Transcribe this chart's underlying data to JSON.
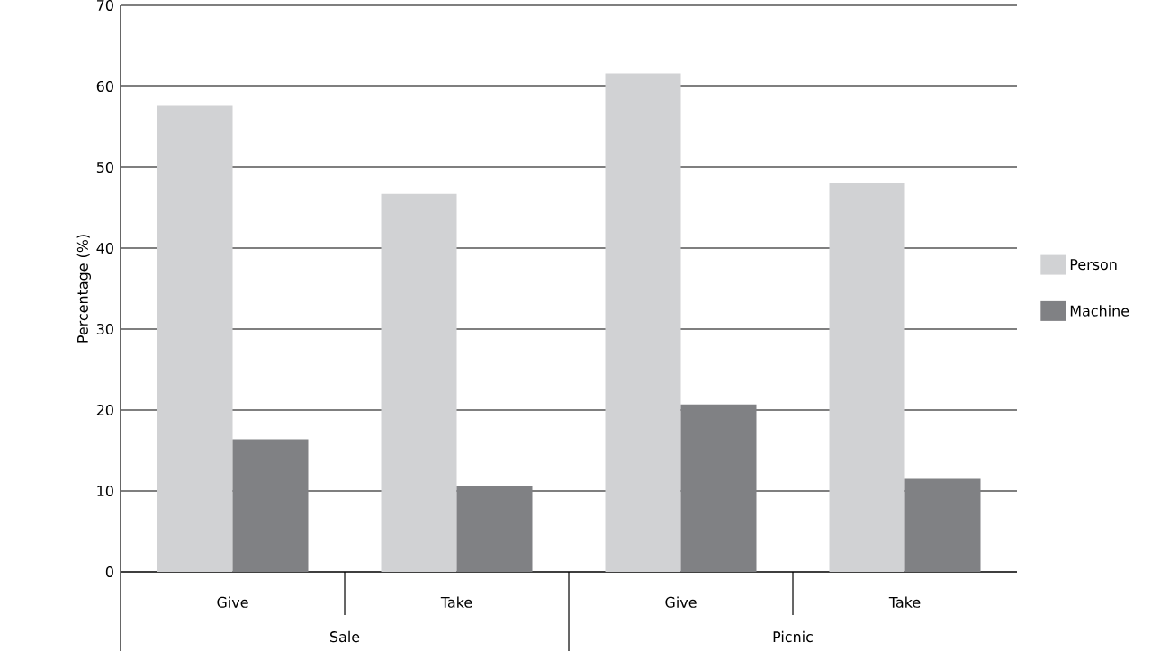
{
  "chart_data": {
    "type": "bar",
    "ylabel": "Percentage (%)",
    "categories": [
      "Give",
      "Take",
      "Give",
      "Take"
    ],
    "annotations": [
      "Sale",
      "Picnic"
    ],
    "series": [
      {
        "name": "Person",
        "color": "#d1d2d4",
        "values": [
          57.6,
          46.7,
          61.6,
          48.1
        ]
      },
      {
        "name": "Machine",
        "color": "#808184",
        "values": [
          16.4,
          10.6,
          20.7,
          11.5
        ]
      }
    ],
    "ylim": [
      0,
      70
    ],
    "yticks": [
      0,
      10,
      20,
      30,
      40,
      50,
      60,
      70
    ],
    "grid": "y",
    "legend": "right"
  }
}
